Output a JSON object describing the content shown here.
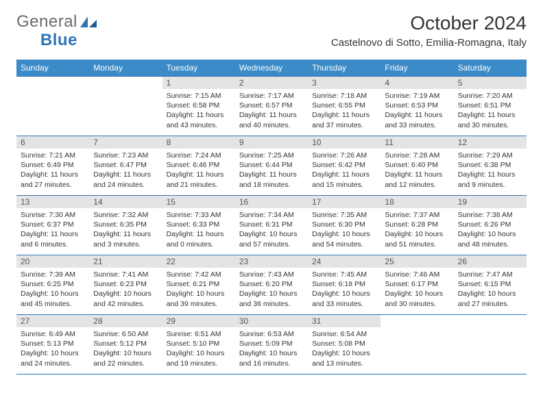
{
  "brand": {
    "text1": "General",
    "text2": "Blue"
  },
  "title": "October 2024",
  "location": "Castelnovo di Sotto, Emilia-Romagna, Italy",
  "colors": {
    "header_bg": "#3b8bc8",
    "header_text": "#ffffff",
    "daynum_bg": "#e4e4e4",
    "rule": "#2f74b5",
    "logo_gray": "#6a6a6a",
    "logo_blue": "#2f74b5"
  },
  "day_headers": [
    "Sunday",
    "Monday",
    "Tuesday",
    "Wednesday",
    "Thursday",
    "Friday",
    "Saturday"
  ],
  "weeks": [
    [
      null,
      null,
      {
        "n": "1",
        "sr": "Sunrise: 7:15 AM",
        "ss": "Sunset: 6:58 PM",
        "dl": "Daylight: 11 hours and 43 minutes."
      },
      {
        "n": "2",
        "sr": "Sunrise: 7:17 AM",
        "ss": "Sunset: 6:57 PM",
        "dl": "Daylight: 11 hours and 40 minutes."
      },
      {
        "n": "3",
        "sr": "Sunrise: 7:18 AM",
        "ss": "Sunset: 6:55 PM",
        "dl": "Daylight: 11 hours and 37 minutes."
      },
      {
        "n": "4",
        "sr": "Sunrise: 7:19 AM",
        "ss": "Sunset: 6:53 PM",
        "dl": "Daylight: 11 hours and 33 minutes."
      },
      {
        "n": "5",
        "sr": "Sunrise: 7:20 AM",
        "ss": "Sunset: 6:51 PM",
        "dl": "Daylight: 11 hours and 30 minutes."
      }
    ],
    [
      {
        "n": "6",
        "sr": "Sunrise: 7:21 AM",
        "ss": "Sunset: 6:49 PM",
        "dl": "Daylight: 11 hours and 27 minutes."
      },
      {
        "n": "7",
        "sr": "Sunrise: 7:23 AM",
        "ss": "Sunset: 6:47 PM",
        "dl": "Daylight: 11 hours and 24 minutes."
      },
      {
        "n": "8",
        "sr": "Sunrise: 7:24 AM",
        "ss": "Sunset: 6:46 PM",
        "dl": "Daylight: 11 hours and 21 minutes."
      },
      {
        "n": "9",
        "sr": "Sunrise: 7:25 AM",
        "ss": "Sunset: 6:44 PM",
        "dl": "Daylight: 11 hours and 18 minutes."
      },
      {
        "n": "10",
        "sr": "Sunrise: 7:26 AM",
        "ss": "Sunset: 6:42 PM",
        "dl": "Daylight: 11 hours and 15 minutes."
      },
      {
        "n": "11",
        "sr": "Sunrise: 7:28 AM",
        "ss": "Sunset: 6:40 PM",
        "dl": "Daylight: 11 hours and 12 minutes."
      },
      {
        "n": "12",
        "sr": "Sunrise: 7:29 AM",
        "ss": "Sunset: 6:38 PM",
        "dl": "Daylight: 11 hours and 9 minutes."
      }
    ],
    [
      {
        "n": "13",
        "sr": "Sunrise: 7:30 AM",
        "ss": "Sunset: 6:37 PM",
        "dl": "Daylight: 11 hours and 6 minutes."
      },
      {
        "n": "14",
        "sr": "Sunrise: 7:32 AM",
        "ss": "Sunset: 6:35 PM",
        "dl": "Daylight: 11 hours and 3 minutes."
      },
      {
        "n": "15",
        "sr": "Sunrise: 7:33 AM",
        "ss": "Sunset: 6:33 PM",
        "dl": "Daylight: 11 hours and 0 minutes."
      },
      {
        "n": "16",
        "sr": "Sunrise: 7:34 AM",
        "ss": "Sunset: 6:31 PM",
        "dl": "Daylight: 10 hours and 57 minutes."
      },
      {
        "n": "17",
        "sr": "Sunrise: 7:35 AM",
        "ss": "Sunset: 6:30 PM",
        "dl": "Daylight: 10 hours and 54 minutes."
      },
      {
        "n": "18",
        "sr": "Sunrise: 7:37 AM",
        "ss": "Sunset: 6:28 PM",
        "dl": "Daylight: 10 hours and 51 minutes."
      },
      {
        "n": "19",
        "sr": "Sunrise: 7:38 AM",
        "ss": "Sunset: 6:26 PM",
        "dl": "Daylight: 10 hours and 48 minutes."
      }
    ],
    [
      {
        "n": "20",
        "sr": "Sunrise: 7:39 AM",
        "ss": "Sunset: 6:25 PM",
        "dl": "Daylight: 10 hours and 45 minutes."
      },
      {
        "n": "21",
        "sr": "Sunrise: 7:41 AM",
        "ss": "Sunset: 6:23 PM",
        "dl": "Daylight: 10 hours and 42 minutes."
      },
      {
        "n": "22",
        "sr": "Sunrise: 7:42 AM",
        "ss": "Sunset: 6:21 PM",
        "dl": "Daylight: 10 hours and 39 minutes."
      },
      {
        "n": "23",
        "sr": "Sunrise: 7:43 AM",
        "ss": "Sunset: 6:20 PM",
        "dl": "Daylight: 10 hours and 36 minutes."
      },
      {
        "n": "24",
        "sr": "Sunrise: 7:45 AM",
        "ss": "Sunset: 6:18 PM",
        "dl": "Daylight: 10 hours and 33 minutes."
      },
      {
        "n": "25",
        "sr": "Sunrise: 7:46 AM",
        "ss": "Sunset: 6:17 PM",
        "dl": "Daylight: 10 hours and 30 minutes."
      },
      {
        "n": "26",
        "sr": "Sunrise: 7:47 AM",
        "ss": "Sunset: 6:15 PM",
        "dl": "Daylight: 10 hours and 27 minutes."
      }
    ],
    [
      {
        "n": "27",
        "sr": "Sunrise: 6:49 AM",
        "ss": "Sunset: 5:13 PM",
        "dl": "Daylight: 10 hours and 24 minutes."
      },
      {
        "n": "28",
        "sr": "Sunrise: 6:50 AM",
        "ss": "Sunset: 5:12 PM",
        "dl": "Daylight: 10 hours and 22 minutes."
      },
      {
        "n": "29",
        "sr": "Sunrise: 6:51 AM",
        "ss": "Sunset: 5:10 PM",
        "dl": "Daylight: 10 hours and 19 minutes."
      },
      {
        "n": "30",
        "sr": "Sunrise: 6:53 AM",
        "ss": "Sunset: 5:09 PM",
        "dl": "Daylight: 10 hours and 16 minutes."
      },
      {
        "n": "31",
        "sr": "Sunrise: 6:54 AM",
        "ss": "Sunset: 5:08 PM",
        "dl": "Daylight: 10 hours and 13 minutes."
      },
      null,
      null
    ]
  ]
}
